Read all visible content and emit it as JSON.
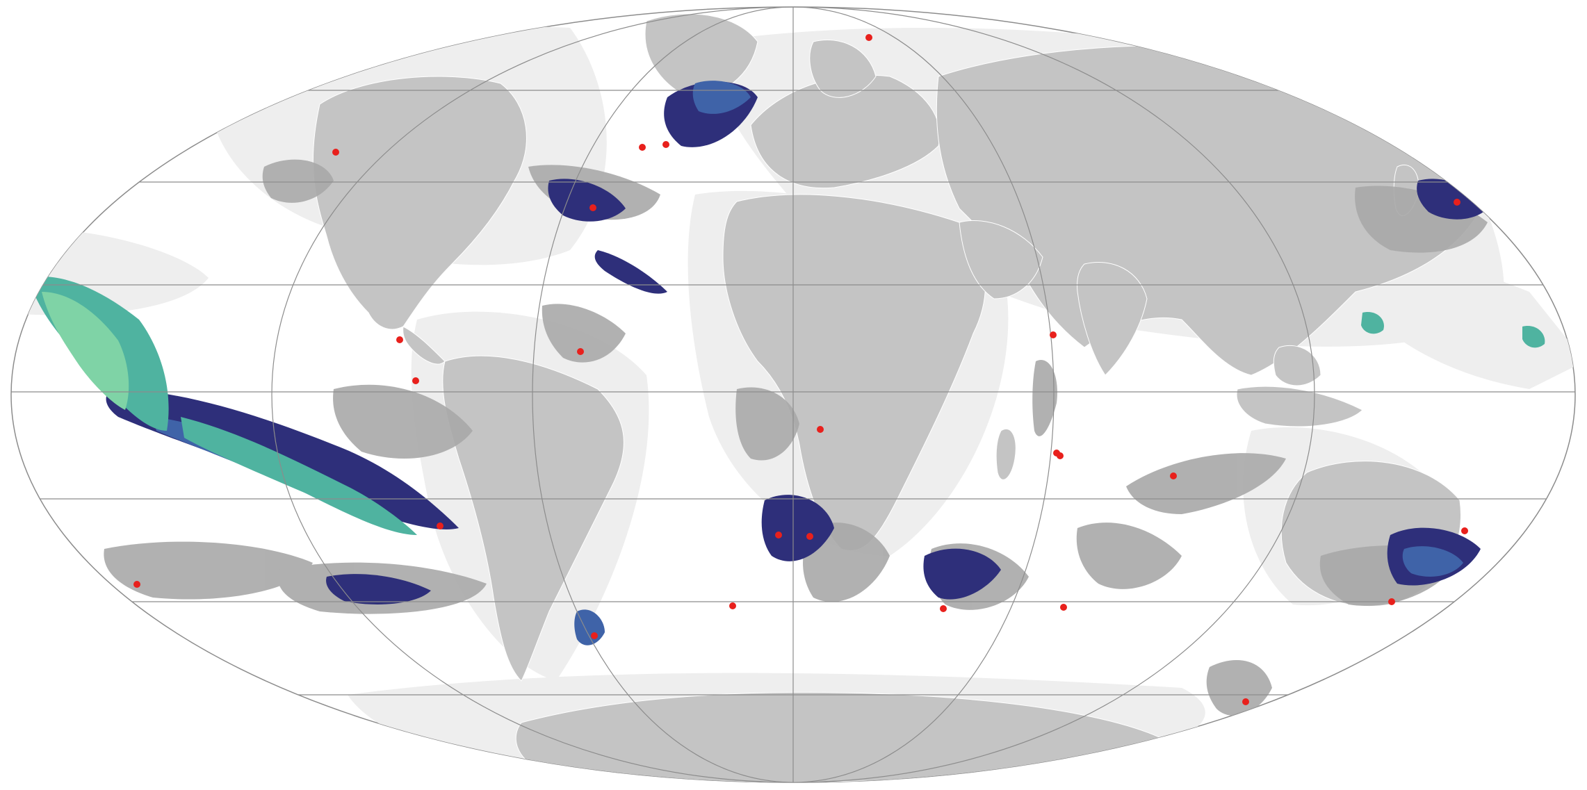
{
  "map": {
    "projection": "mollweide",
    "colors": {
      "background": "#ffffff",
      "ocean": "#ffffff",
      "shelf": "#eeeeee",
      "land": "#c4c4c4",
      "country_border": "#ffffff",
      "graticule": "#8c8c8c",
      "region_gray": "#a8a8a8",
      "density_low": "#2e2f7a",
      "density_mid": "#3f63a8",
      "density_high": "#4fb3a0",
      "density_peak": "#7fd3a6",
      "site_marker": "#e8201c"
    },
    "legend": null,
    "title": ""
  },
  "sites": [
    {
      "id": "site-01"
    },
    {
      "id": "site-02"
    },
    {
      "id": "site-03"
    },
    {
      "id": "site-04"
    },
    {
      "id": "site-05"
    },
    {
      "id": "site-06"
    },
    {
      "id": "site-07"
    },
    {
      "id": "site-08"
    },
    {
      "id": "site-09"
    },
    {
      "id": "site-10"
    },
    {
      "id": "site-11"
    },
    {
      "id": "site-12"
    },
    {
      "id": "site-13"
    },
    {
      "id": "site-14"
    },
    {
      "id": "site-15"
    },
    {
      "id": "site-16"
    },
    {
      "id": "site-17"
    },
    {
      "id": "site-18"
    },
    {
      "id": "site-19"
    },
    {
      "id": "site-20"
    },
    {
      "id": "site-21"
    },
    {
      "id": "site-22"
    },
    {
      "id": "site-23"
    },
    {
      "id": "site-24"
    },
    {
      "id": "site-25"
    }
  ]
}
